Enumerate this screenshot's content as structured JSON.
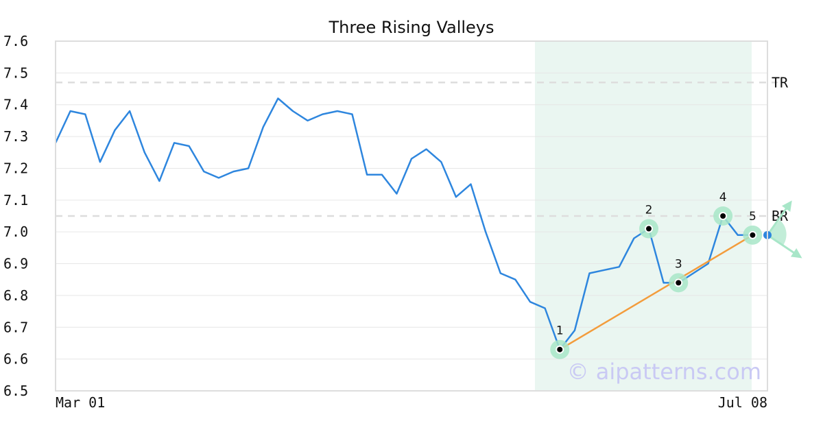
{
  "chart_data": {
    "type": "line",
    "title": "Three Rising Valleys",
    "xlabel": "",
    "ylabel": "",
    "x_tick_labels": [
      "Mar 01",
      "Jul 08"
    ],
    "ylim": [
      6.5,
      7.6
    ],
    "y_ticks": [
      "6.5",
      "6.6",
      "6.7",
      "6.8",
      "6.9",
      "7.0",
      "7.1",
      "7.2",
      "7.3",
      "7.4",
      "7.5",
      "7.6"
    ],
    "grid": "horizontal",
    "series": [
      {
        "color": "#2e86de",
        "values": [
          7.28,
          7.38,
          7.37,
          7.22,
          7.32,
          7.38,
          7.25,
          7.16,
          7.28,
          7.27,
          7.19,
          7.17,
          7.19,
          7.2,
          7.33,
          7.42,
          7.38,
          7.35,
          7.37,
          7.38,
          7.37,
          7.18,
          7.18,
          7.12,
          7.23,
          7.26,
          7.22,
          7.11,
          7.15,
          7.0,
          6.87,
          6.85,
          6.78,
          6.76,
          6.63,
          6.69,
          6.87,
          6.88,
          6.89,
          6.98,
          7.01,
          6.84,
          6.84,
          6.87,
          6.9,
          7.05,
          6.99,
          6.99
        ]
      }
    ],
    "reference_lines": [
      {
        "label": "TR",
        "value": 7.47
      },
      {
        "label": "BR",
        "value": 7.05
      }
    ],
    "highlight_range": {
      "from_index": 32,
      "to_index": 48,
      "color": "#eaf6f1"
    },
    "pattern_points": [
      {
        "label": "1",
        "index": 34,
        "value": 6.63
      },
      {
        "label": "2",
        "index": 40,
        "value": 7.01
      },
      {
        "label": "3",
        "index": 42,
        "value": 6.84
      },
      {
        "label": "4",
        "index": 45,
        "value": 7.05
      },
      {
        "label": "5",
        "index": 47,
        "value": 6.99
      }
    ],
    "trend_line": {
      "from_point": "1",
      "to_point": "5",
      "color": "#f39c3c"
    },
    "current_point": {
      "index": 48,
      "value": 6.99,
      "color": "#2e86de"
    },
    "colors": {
      "highlight_marker": "#a8e6c8",
      "arrow": "#a8e6c8",
      "grid": "#e6e6e6",
      "reference": "#dddddd"
    }
  },
  "watermark": "© aipatterns.com"
}
